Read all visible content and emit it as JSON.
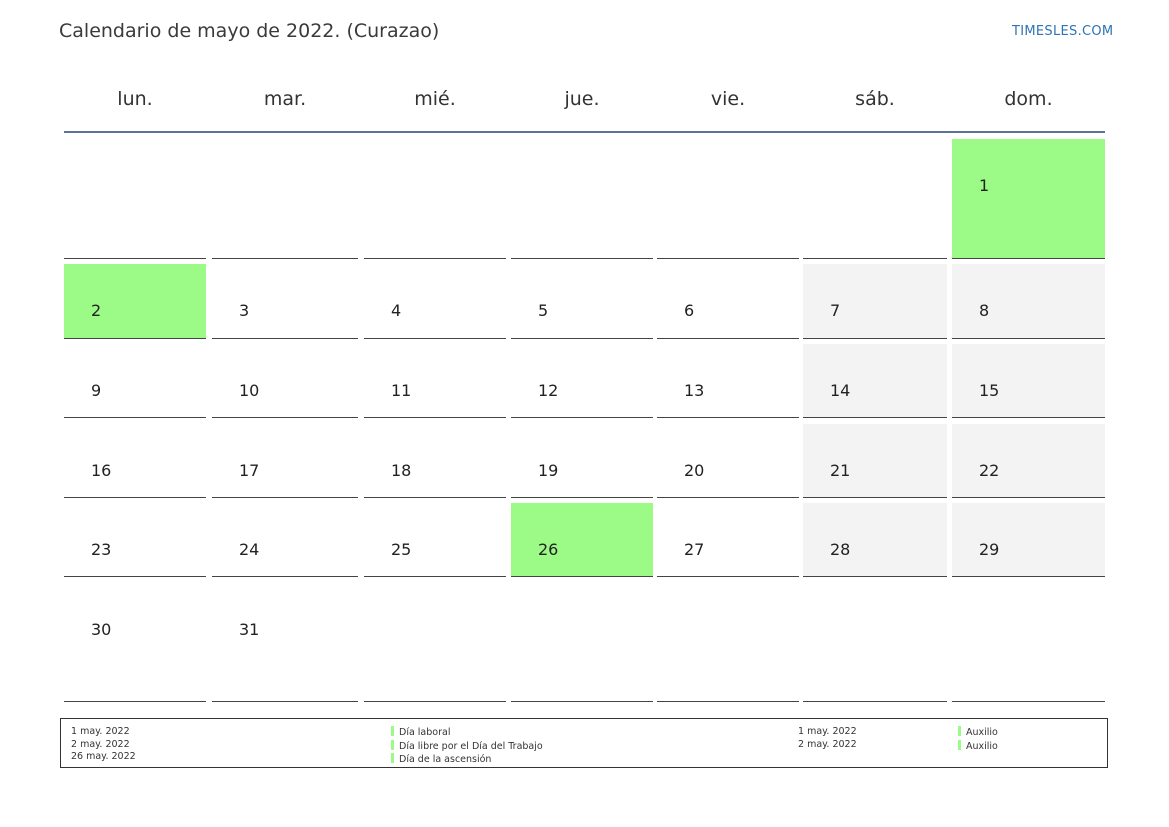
{
  "title": "Calendario de mayo de 2022. (Curazao)",
  "brand": "TIMESLES.COM",
  "weekdays": [
    "lun.",
    "mar.",
    "mié.",
    "jue.",
    "vie.",
    "sáb.",
    "dom."
  ],
  "weeks": [
    [
      "",
      "",
      "",
      "",
      "",
      "",
      "1"
    ],
    [
      "2",
      "3",
      "4",
      "5",
      "6",
      "7",
      "8"
    ],
    [
      "9",
      "10",
      "11",
      "12",
      "13",
      "14",
      "15"
    ],
    [
      "16",
      "17",
      "18",
      "19",
      "20",
      "21",
      "22"
    ],
    [
      "23",
      "24",
      "25",
      "26",
      "27",
      "28",
      "29"
    ],
    [
      "30",
      "31",
      "",
      "",
      "",
      "",
      ""
    ]
  ],
  "holiday_days": [
    "1",
    "2",
    "26"
  ],
  "colors": {
    "holiday": "#9cfa86",
    "weekend": "#f3f3f3",
    "header_line": "#5b7399",
    "brand": "#2e74b5"
  },
  "legend": {
    "dates": [
      "1 may. 2022",
      "2 may. 2022",
      "26 may. 2022"
    ],
    "names": [
      "Día laboral",
      "Día libre por el Día del Trabajo",
      "Día de la ascensión"
    ],
    "extra_dates": [
      "1 may. 2022",
      "2 may. 2022"
    ],
    "extra_types": [
      "Auxilio",
      "Auxilio"
    ]
  }
}
